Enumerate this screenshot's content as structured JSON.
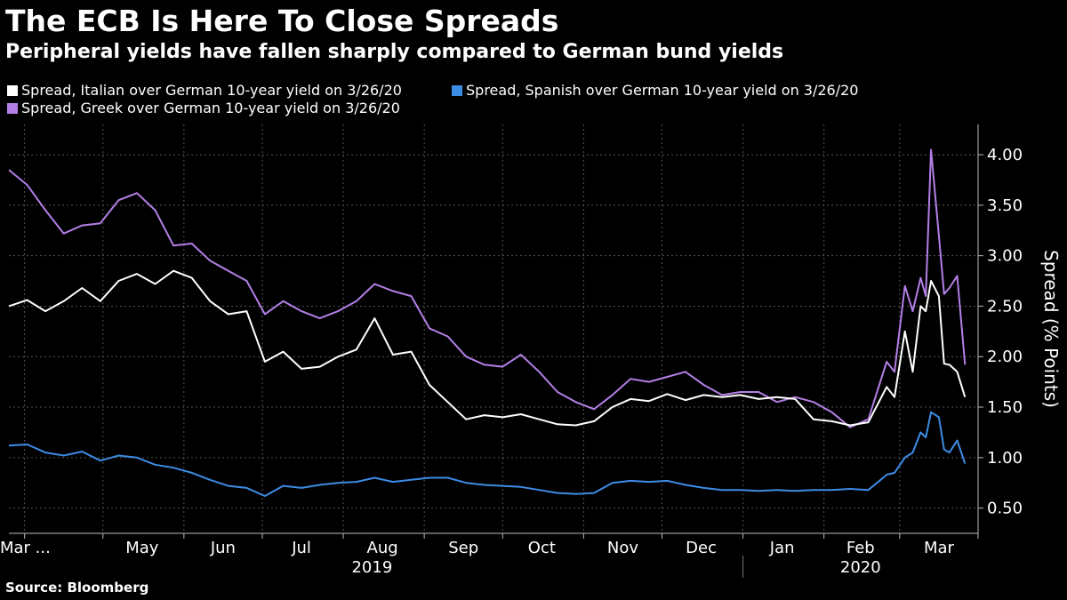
{
  "title": "The ECB Is Here To Close Spreads",
  "subtitle": "Peripheral yields have fallen sharply compared to German bund yields",
  "source": "Source: Bloomberg",
  "chart_data": {
    "type": "line",
    "title": "The ECB Is Here To Close Spreads",
    "subtitle": "Peripheral yields have fallen sharply compared to German bund yields",
    "xlabel": "",
    "ylabel": "Spread (% Points)",
    "ylim": [
      0.25,
      4.3
    ],
    "yticks": [
      "0.50",
      "1.00",
      "1.50",
      "2.00",
      "2.50",
      "3.00",
      "3.50",
      "4.00"
    ],
    "xlim": [
      "2019-03-26",
      "2020-03-31"
    ],
    "x_month_labels": [
      "Mar ...",
      "May",
      "Jun",
      "Jul",
      "Aug",
      "Sep",
      "Oct",
      "Nov",
      "Dec",
      "Jan",
      "Feb",
      "Mar"
    ],
    "x_year_labels": [
      "2019",
      "2020"
    ],
    "grid": true,
    "legend_position": "top",
    "series": [
      {
        "name": "Spread, Italian over German 10-year yield on 3/26/20",
        "color": "#ffffff",
        "points": [
          [
            "2019-03-26",
            2.5
          ],
          [
            "2019-04-02",
            2.56
          ],
          [
            "2019-04-09",
            2.45
          ],
          [
            "2019-04-16",
            2.55
          ],
          [
            "2019-04-23",
            2.68
          ],
          [
            "2019-04-30",
            2.55
          ],
          [
            "2019-05-07",
            2.75
          ],
          [
            "2019-05-14",
            2.82
          ],
          [
            "2019-05-21",
            2.72
          ],
          [
            "2019-05-28",
            2.85
          ],
          [
            "2019-06-04",
            2.78
          ],
          [
            "2019-06-11",
            2.55
          ],
          [
            "2019-06-18",
            2.42
          ],
          [
            "2019-06-25",
            2.45
          ],
          [
            "2019-07-02",
            1.95
          ],
          [
            "2019-07-09",
            2.05
          ],
          [
            "2019-07-16",
            1.88
          ],
          [
            "2019-07-23",
            1.9
          ],
          [
            "2019-07-30",
            2.0
          ],
          [
            "2019-08-06",
            2.07
          ],
          [
            "2019-08-13",
            2.38
          ],
          [
            "2019-08-20",
            2.02
          ],
          [
            "2019-08-27",
            2.05
          ],
          [
            "2019-09-03",
            1.72
          ],
          [
            "2019-09-10",
            1.55
          ],
          [
            "2019-09-17",
            1.38
          ],
          [
            "2019-09-24",
            1.42
          ],
          [
            "2019-10-01",
            1.4
          ],
          [
            "2019-10-08",
            1.43
          ],
          [
            "2019-10-15",
            1.38
          ],
          [
            "2019-10-22",
            1.33
          ],
          [
            "2019-10-29",
            1.32
          ],
          [
            "2019-11-05",
            1.36
          ],
          [
            "2019-11-12",
            1.5
          ],
          [
            "2019-11-19",
            1.58
          ],
          [
            "2019-11-26",
            1.56
          ],
          [
            "2019-12-03",
            1.63
          ],
          [
            "2019-12-10",
            1.57
          ],
          [
            "2019-12-17",
            1.62
          ],
          [
            "2019-12-24",
            1.6
          ],
          [
            "2019-12-31",
            1.62
          ],
          [
            "2020-01-07",
            1.58
          ],
          [
            "2020-01-14",
            1.6
          ],
          [
            "2020-01-21",
            1.58
          ],
          [
            "2020-01-28",
            1.38
          ],
          [
            "2020-02-04",
            1.36
          ],
          [
            "2020-02-11",
            1.32
          ],
          [
            "2020-02-18",
            1.35
          ],
          [
            "2020-02-25",
            1.7
          ],
          [
            "2020-02-28",
            1.6
          ],
          [
            "2020-03-03",
            2.25
          ],
          [
            "2020-03-06",
            1.85
          ],
          [
            "2020-03-09",
            2.5
          ],
          [
            "2020-03-11",
            2.45
          ],
          [
            "2020-03-13",
            2.75
          ],
          [
            "2020-03-16",
            2.6
          ],
          [
            "2020-03-18",
            1.93
          ],
          [
            "2020-03-20",
            1.92
          ],
          [
            "2020-03-23",
            1.85
          ],
          [
            "2020-03-26",
            1.6
          ]
        ]
      },
      {
        "name": "Spread, Spanish over German 10-year yield on 3/26/20",
        "color": "#3d8ce6",
        "points": [
          [
            "2019-03-26",
            1.12
          ],
          [
            "2019-04-02",
            1.13
          ],
          [
            "2019-04-09",
            1.05
          ],
          [
            "2019-04-16",
            1.02
          ],
          [
            "2019-04-23",
            1.06
          ],
          [
            "2019-04-30",
            0.97
          ],
          [
            "2019-05-07",
            1.02
          ],
          [
            "2019-05-14",
            1.0
          ],
          [
            "2019-05-21",
            0.93
          ],
          [
            "2019-05-28",
            0.9
          ],
          [
            "2019-06-04",
            0.85
          ],
          [
            "2019-06-11",
            0.78
          ],
          [
            "2019-06-18",
            0.72
          ],
          [
            "2019-06-25",
            0.7
          ],
          [
            "2019-07-02",
            0.62
          ],
          [
            "2019-07-09",
            0.72
          ],
          [
            "2019-07-16",
            0.7
          ],
          [
            "2019-07-23",
            0.73
          ],
          [
            "2019-07-30",
            0.75
          ],
          [
            "2019-08-06",
            0.76
          ],
          [
            "2019-08-13",
            0.8
          ],
          [
            "2019-08-20",
            0.76
          ],
          [
            "2019-08-27",
            0.78
          ],
          [
            "2019-09-03",
            0.8
          ],
          [
            "2019-09-10",
            0.8
          ],
          [
            "2019-09-17",
            0.75
          ],
          [
            "2019-09-24",
            0.73
          ],
          [
            "2019-10-01",
            0.72
          ],
          [
            "2019-10-08",
            0.71
          ],
          [
            "2019-10-15",
            0.68
          ],
          [
            "2019-10-22",
            0.65
          ],
          [
            "2019-10-29",
            0.64
          ],
          [
            "2019-11-05",
            0.65
          ],
          [
            "2019-11-12",
            0.75
          ],
          [
            "2019-11-19",
            0.77
          ],
          [
            "2019-11-26",
            0.76
          ],
          [
            "2019-12-03",
            0.77
          ],
          [
            "2019-12-10",
            0.73
          ],
          [
            "2019-12-17",
            0.7
          ],
          [
            "2019-12-24",
            0.68
          ],
          [
            "2019-12-31",
            0.68
          ],
          [
            "2020-01-07",
            0.67
          ],
          [
            "2020-01-14",
            0.68
          ],
          [
            "2020-01-21",
            0.67
          ],
          [
            "2020-01-28",
            0.68
          ],
          [
            "2020-02-04",
            0.68
          ],
          [
            "2020-02-11",
            0.69
          ],
          [
            "2020-02-18",
            0.68
          ],
          [
            "2020-02-25",
            0.83
          ],
          [
            "2020-02-28",
            0.85
          ],
          [
            "2020-03-03",
            1.0
          ],
          [
            "2020-03-06",
            1.05
          ],
          [
            "2020-03-09",
            1.25
          ],
          [
            "2020-03-11",
            1.2
          ],
          [
            "2020-03-13",
            1.45
          ],
          [
            "2020-03-16",
            1.4
          ],
          [
            "2020-03-18",
            1.08
          ],
          [
            "2020-03-20",
            1.05
          ],
          [
            "2020-03-23",
            1.17
          ],
          [
            "2020-03-26",
            0.94
          ]
        ]
      },
      {
        "name": "Spread, Greek over German 10-year yield on 3/26/20",
        "color": "#b47fe6",
        "points": [
          [
            "2019-03-26",
            3.85
          ],
          [
            "2019-04-02",
            3.7
          ],
          [
            "2019-04-09",
            3.45
          ],
          [
            "2019-04-16",
            3.22
          ],
          [
            "2019-04-23",
            3.3
          ],
          [
            "2019-04-30",
            3.32
          ],
          [
            "2019-05-07",
            3.55
          ],
          [
            "2019-05-14",
            3.62
          ],
          [
            "2019-05-21",
            3.45
          ],
          [
            "2019-05-28",
            3.1
          ],
          [
            "2019-06-04",
            3.12
          ],
          [
            "2019-06-11",
            2.95
          ],
          [
            "2019-06-18",
            2.85
          ],
          [
            "2019-06-25",
            2.75
          ],
          [
            "2019-07-02",
            2.42
          ],
          [
            "2019-07-09",
            2.55
          ],
          [
            "2019-07-16",
            2.45
          ],
          [
            "2019-07-23",
            2.38
          ],
          [
            "2019-07-30",
            2.45
          ],
          [
            "2019-08-06",
            2.55
          ],
          [
            "2019-08-13",
            2.72
          ],
          [
            "2019-08-20",
            2.65
          ],
          [
            "2019-08-27",
            2.6
          ],
          [
            "2019-09-03",
            2.28
          ],
          [
            "2019-09-10",
            2.2
          ],
          [
            "2019-09-17",
            2.0
          ],
          [
            "2019-09-24",
            1.92
          ],
          [
            "2019-10-01",
            1.9
          ],
          [
            "2019-10-08",
            2.02
          ],
          [
            "2019-10-15",
            1.85
          ],
          [
            "2019-10-22",
            1.65
          ],
          [
            "2019-10-29",
            1.55
          ],
          [
            "2019-11-05",
            1.48
          ],
          [
            "2019-11-12",
            1.62
          ],
          [
            "2019-11-19",
            1.78
          ],
          [
            "2019-11-26",
            1.75
          ],
          [
            "2019-12-03",
            1.8
          ],
          [
            "2019-12-10",
            1.85
          ],
          [
            "2019-12-17",
            1.72
          ],
          [
            "2019-12-24",
            1.62
          ],
          [
            "2019-12-31",
            1.65
          ],
          [
            "2020-01-07",
            1.65
          ],
          [
            "2020-01-14",
            1.55
          ],
          [
            "2020-01-21",
            1.6
          ],
          [
            "2020-01-28",
            1.55
          ],
          [
            "2020-02-04",
            1.45
          ],
          [
            "2020-02-11",
            1.3
          ],
          [
            "2020-02-18",
            1.38
          ],
          [
            "2020-02-25",
            1.95
          ],
          [
            "2020-02-28",
            1.85
          ],
          [
            "2020-03-03",
            2.7
          ],
          [
            "2020-03-06",
            2.45
          ],
          [
            "2020-03-09",
            2.78
          ],
          [
            "2020-03-11",
            2.6
          ],
          [
            "2020-03-13",
            4.05
          ],
          [
            "2020-03-16",
            3.2
          ],
          [
            "2020-03-18",
            2.62
          ],
          [
            "2020-03-20",
            2.68
          ],
          [
            "2020-03-23",
            2.8
          ],
          [
            "2020-03-26",
            1.92
          ]
        ]
      }
    ]
  }
}
